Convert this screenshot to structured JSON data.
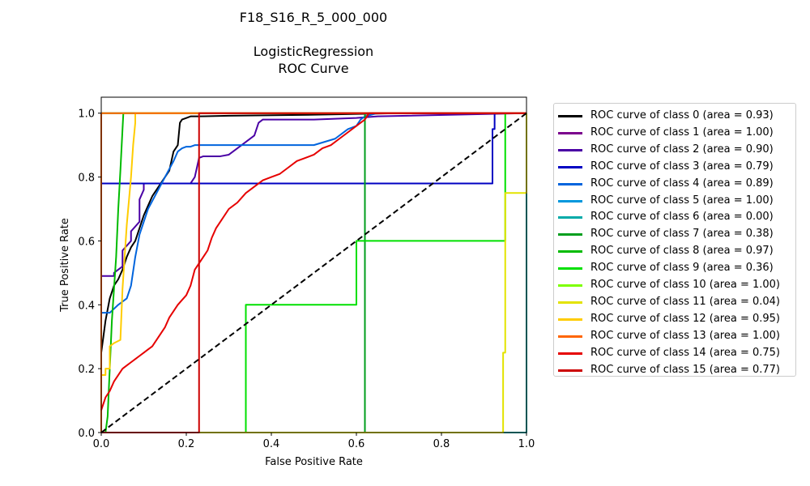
{
  "chart_data": {
    "type": "line",
    "title": "F18_S16_R_5_000_000",
    "subtitle_line1": "LogisticRegression",
    "subtitle_line2": "ROC Curve",
    "xlabel": "False Positive Rate",
    "ylabel": "True Positive Rate",
    "xlim": [
      0,
      1
    ],
    "ylim": [
      0,
      1.05
    ],
    "xticks": [
      "0.0",
      "0.2",
      "0.4",
      "0.6",
      "0.8",
      "1.0"
    ],
    "yticks": [
      "0.0",
      "0.2",
      "0.4",
      "0.6",
      "0.8",
      "1.0"
    ],
    "grid": false,
    "legend_position": "outside-right",
    "diagonal": {
      "x": [
        0,
        1
      ],
      "y": [
        0,
        1
      ],
      "style": "dashed",
      "color": "#000000"
    },
    "series": [
      {
        "name": "ROC curve of class 0 (area = 0.93)",
        "color": "#000000",
        "x": [
          0,
          0.005,
          0.01,
          0.02,
          0.03,
          0.04,
          0.05,
          0.06,
          0.07,
          0.08,
          0.09,
          0.1,
          0.11,
          0.12,
          0.13,
          0.14,
          0.15,
          0.16,
          0.17,
          0.18,
          0.185,
          0.19,
          0.2,
          0.21,
          0.23,
          0.3,
          0.5,
          0.7,
          1.0
        ],
        "y": [
          0.25,
          0.3,
          0.35,
          0.42,
          0.46,
          0.48,
          0.51,
          0.55,
          0.58,
          0.6,
          0.64,
          0.68,
          0.71,
          0.74,
          0.76,
          0.78,
          0.8,
          0.82,
          0.88,
          0.9,
          0.97,
          0.98,
          0.985,
          0.99,
          0.99,
          0.992,
          0.995,
          1.0,
          1.0
        ]
      },
      {
        "name": "ROC curve of class 1 (area = 1.00)",
        "color": "#7b008d",
        "x": [
          0,
          0,
          1
        ],
        "y": [
          0,
          1,
          1
        ]
      },
      {
        "name": "ROC curve of class 2 (area = 0.90)",
        "color": "#4a00a5",
        "x": [
          0,
          0,
          0.03,
          0.03,
          0.05,
          0.05,
          0.07,
          0.07,
          0.09,
          0.09,
          0.1,
          0.1,
          0.2,
          0.21,
          0.22,
          0.225,
          0.23,
          0.24,
          0.28,
          0.3,
          0.33,
          0.36,
          0.37,
          0.38,
          0.45,
          0.5,
          0.6,
          0.65,
          1.0
        ],
        "y": [
          0,
          0.49,
          0.49,
          0.5,
          0.52,
          0.57,
          0.6,
          0.63,
          0.66,
          0.73,
          0.76,
          0.78,
          0.78,
          0.78,
          0.8,
          0.83,
          0.86,
          0.865,
          0.865,
          0.87,
          0.9,
          0.93,
          0.97,
          0.98,
          0.98,
          0.98,
          0.985,
          0.99,
          1.0
        ]
      },
      {
        "name": "ROC curve of class 3 (area = 0.79)",
        "color": "#0000c2",
        "x": [
          0,
          0.92,
          0.92,
          0.925,
          0.925,
          1.0
        ],
        "y": [
          0.78,
          0.78,
          0.95,
          0.95,
          1.0,
          1.0
        ]
      },
      {
        "name": "ROC curve of class 4 (area = 0.89)",
        "color": "#0064dd",
        "x": [
          0,
          0,
          0.02,
          0.04,
          0.06,
          0.07,
          0.08,
          0.09,
          0.11,
          0.13,
          0.15,
          0.17,
          0.18,
          0.19,
          0.2,
          0.21,
          0.22,
          0.3,
          0.42,
          0.5,
          0.55,
          0.58,
          0.6,
          0.61,
          0.62,
          0.65,
          1.0
        ],
        "y": [
          0,
          0.375,
          0.375,
          0.4,
          0.42,
          0.46,
          0.55,
          0.62,
          0.7,
          0.75,
          0.8,
          0.85,
          0.88,
          0.89,
          0.895,
          0.895,
          0.9,
          0.9,
          0.9,
          0.9,
          0.92,
          0.95,
          0.96,
          0.98,
          0.99,
          1.0,
          1.0
        ]
      },
      {
        "name": "ROC curve of class 5 (area = 1.00)",
        "color": "#0097dd",
        "x": [
          0,
          0,
          1
        ],
        "y": [
          0,
          1,
          1
        ]
      },
      {
        "name": "ROC curve of class 6 (area = 0.00)",
        "color": "#00aaa8",
        "x": [
          0,
          1.0,
          1.0
        ],
        "y": [
          0,
          0,
          1.0
        ]
      },
      {
        "name": "ROC curve of class 7 (area = 0.38)",
        "color": "#009e1d",
        "x": [
          0,
          0.62,
          0.62,
          1.0
        ],
        "y": [
          0,
          0,
          1.0,
          1.0
        ]
      },
      {
        "name": "ROC curve of class 8 (area = 0.97)",
        "color": "#00bb00",
        "x": [
          0,
          0.01,
          0.015,
          0.02,
          0.025,
          0.03,
          0.035,
          0.04,
          0.045,
          0.05,
          0.052,
          1.0
        ],
        "y": [
          0,
          0,
          0.05,
          0.2,
          0.35,
          0.45,
          0.55,
          0.7,
          0.82,
          0.95,
          1.0,
          1.0
        ]
      },
      {
        "name": "ROC curve of class 9 (area = 0.36)",
        "color": "#00e000",
        "x": [
          0,
          0.34,
          0.34,
          0.6,
          0.6,
          0.95,
          0.95,
          1.0
        ],
        "y": [
          0,
          0,
          0.4,
          0.4,
          0.6,
          0.6,
          1.0,
          1.0
        ]
      },
      {
        "name": "ROC curve of class 10 (area = 1.00)",
        "color": "#7dff00",
        "x": [
          0,
          0,
          1
        ],
        "y": [
          0,
          1,
          1
        ]
      },
      {
        "name": "ROC curve of class 11 (area = 0.04)",
        "color": "#e3e300",
        "x": [
          0,
          0.945,
          0.945,
          0.95,
          0.95,
          0.955,
          0.955,
          1.0,
          1.0
        ],
        "y": [
          0,
          0,
          0.25,
          0.25,
          0.75,
          0.75,
          0.75,
          0.75,
          1.0
        ]
      },
      {
        "name": "ROC curve of class 12 (area = 0.95)",
        "color": "#ffcc00",
        "x": [
          0,
          0,
          0.01,
          0.01,
          0.02,
          0.02,
          0.03,
          0.03,
          0.045,
          0.05,
          0.055,
          0.06,
          0.07,
          0.075,
          0.08,
          0.08,
          1.0
        ],
        "y": [
          0,
          0.18,
          0.18,
          0.2,
          0.2,
          0.27,
          0.28,
          0.28,
          0.29,
          0.45,
          0.55,
          0.65,
          0.8,
          0.9,
          0.97,
          1.0,
          1.0
        ]
      },
      {
        "name": "ROC curve of class 13 (area = 1.00)",
        "color": "#ff6500",
        "x": [
          0,
          0,
          1
        ],
        "y": [
          0,
          1,
          1
        ]
      },
      {
        "name": "ROC curve of class 14 (area = 0.75)",
        "color": "#e60000",
        "x": [
          0,
          0.005,
          0.01,
          0.02,
          0.03,
          0.04,
          0.05,
          0.06,
          0.07,
          0.08,
          0.09,
          0.1,
          0.11,
          0.12,
          0.13,
          0.14,
          0.15,
          0.16,
          0.17,
          0.18,
          0.2,
          0.21,
          0.22,
          0.23,
          0.24,
          0.25,
          0.26,
          0.27,
          0.28,
          0.3,
          0.32,
          0.34,
          0.36,
          0.38,
          0.4,
          0.42,
          0.44,
          0.46,
          0.48,
          0.5,
          0.52,
          0.54,
          0.56,
          0.58,
          0.6,
          0.62,
          0.63,
          1.0
        ],
        "y": [
          0.07,
          0.09,
          0.11,
          0.13,
          0.16,
          0.18,
          0.2,
          0.21,
          0.22,
          0.23,
          0.24,
          0.25,
          0.26,
          0.27,
          0.29,
          0.31,
          0.33,
          0.36,
          0.38,
          0.4,
          0.43,
          0.46,
          0.51,
          0.53,
          0.55,
          0.57,
          0.61,
          0.64,
          0.66,
          0.7,
          0.72,
          0.75,
          0.77,
          0.79,
          0.8,
          0.81,
          0.83,
          0.85,
          0.86,
          0.87,
          0.89,
          0.9,
          0.92,
          0.94,
          0.96,
          0.98,
          1.0,
          1.0
        ]
      },
      {
        "name": "ROC curve of class 15 (area = 0.77)",
        "color": "#cc0000",
        "x": [
          0,
          0.23,
          0.23,
          1.0
        ],
        "y": [
          0,
          0,
          1.0,
          1.0
        ]
      }
    ]
  }
}
